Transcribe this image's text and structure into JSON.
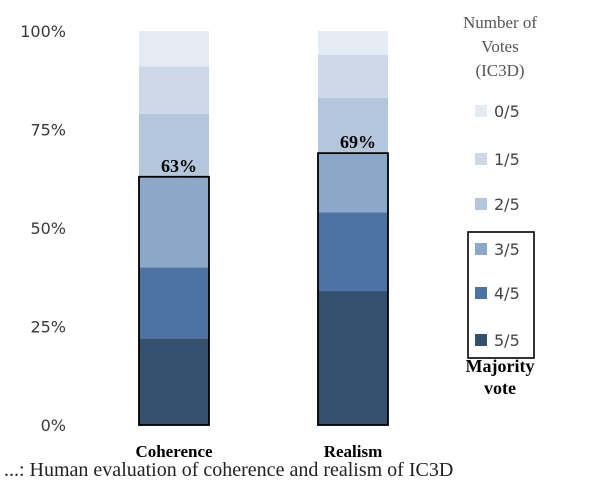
{
  "chart_data": {
    "type": "bar",
    "stacked": true,
    "categories": [
      "Coherence",
      "Realism"
    ],
    "series": [
      {
        "name": "5/5",
        "color": "#34506f",
        "values": [
          22,
          34
        ]
      },
      {
        "name": "4/5",
        "color": "#4d73a4",
        "values": [
          18,
          20
        ]
      },
      {
        "name": "3/5",
        "color": "#8ba8c8",
        "values": [
          23,
          15
        ]
      },
      {
        "name": "2/5",
        "color": "#b3c6dc",
        "values": [
          16,
          14
        ]
      },
      {
        "name": "1/5",
        "color": "#cdd9e8",
        "values": [
          12,
          11
        ]
      },
      {
        "name": "0/5",
        "color": "#e5ebf3",
        "values": [
          9,
          6
        ]
      }
    ],
    "majority_labels": [
      "63%",
      "69%"
    ],
    "majority_values": [
      63,
      69
    ],
    "yticks": [
      "0%",
      "25%",
      "50%",
      "75%",
      "100%"
    ],
    "ylim": [
      0,
      100
    ],
    "legend_title": "Number of Votes (IC3D)",
    "legend_title_lines": [
      "Number of",
      "Votes",
      "(IC3D)"
    ],
    "legend_position": "right",
    "legend_group_label_lines": [
      "Majority",
      "vote"
    ],
    "grid": false
  },
  "caption": "...: Human evaluation of coherence and realism of IC3D"
}
